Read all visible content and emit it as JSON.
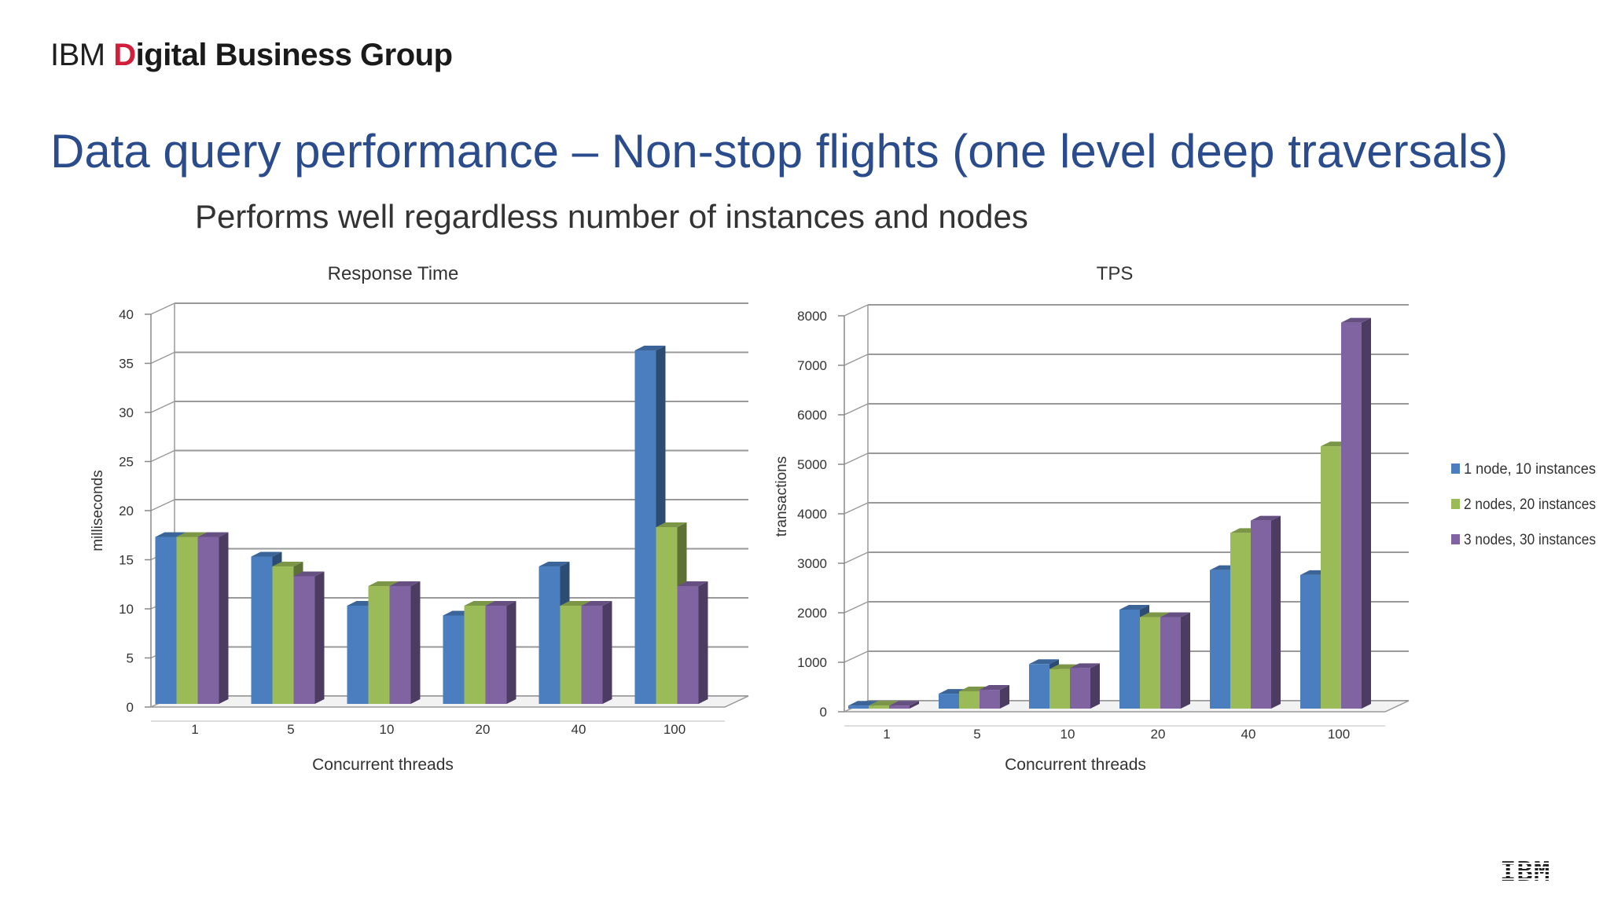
{
  "header": {
    "brand_ibm": "IBM",
    "brand_d": "D",
    "brand_rest": "igital Business Group",
    "title": "Data query performance – Non-stop flights (one level deep traversals)",
    "subtitle": "Performs well regardless number of instances and nodes"
  },
  "footer": {
    "logo": "IBM"
  },
  "colors": {
    "s1": "#4a7ebf",
    "s2": "#9bbb59",
    "s3": "#8064a2"
  },
  "chart_data": [
    {
      "type": "bar",
      "title": "Response Time",
      "xlabel": "Concurrent threads",
      "ylabel": "milliseconds",
      "categories": [
        "1",
        "5",
        "10",
        "20",
        "40",
        "100"
      ],
      "ylim": [
        0,
        40
      ],
      "yticks": [
        "0",
        "5",
        "10",
        "15",
        "20",
        "25",
        "30",
        "35",
        "40"
      ],
      "grid": true,
      "series": [
        {
          "name": "1 node, 10 instances",
          "values": [
            17,
            15,
            10,
            9,
            14,
            36
          ]
        },
        {
          "name": "2 nodes, 20 instances",
          "values": [
            17,
            14,
            12,
            10,
            10,
            18
          ]
        },
        {
          "name": "3 nodes, 30 instances",
          "values": [
            17,
            13,
            12,
            10,
            10,
            12
          ]
        }
      ]
    },
    {
      "type": "bar",
      "title": "TPS",
      "xlabel": "Concurrent threads",
      "ylabel": "transactions",
      "categories": [
        "1",
        "5",
        "10",
        "20",
        "40",
        "100"
      ],
      "ylim": [
        0,
        8000
      ],
      "yticks": [
        "0",
        "1000",
        "2000",
        "3000",
        "4000",
        "5000",
        "6000",
        "7000",
        "8000"
      ],
      "grid": true,
      "legend": "right",
      "series": [
        {
          "name": "1 node, 10 instances",
          "values": [
            60,
            300,
            900,
            2000,
            2800,
            2700
          ]
        },
        {
          "name": "2 nodes, 20 instances",
          "values": [
            60,
            350,
            800,
            1850,
            3550,
            5300
          ]
        },
        {
          "name": "3 nodes, 30 instances",
          "values": [
            60,
            380,
            820,
            1850,
            3800,
            7800
          ]
        }
      ]
    }
  ]
}
